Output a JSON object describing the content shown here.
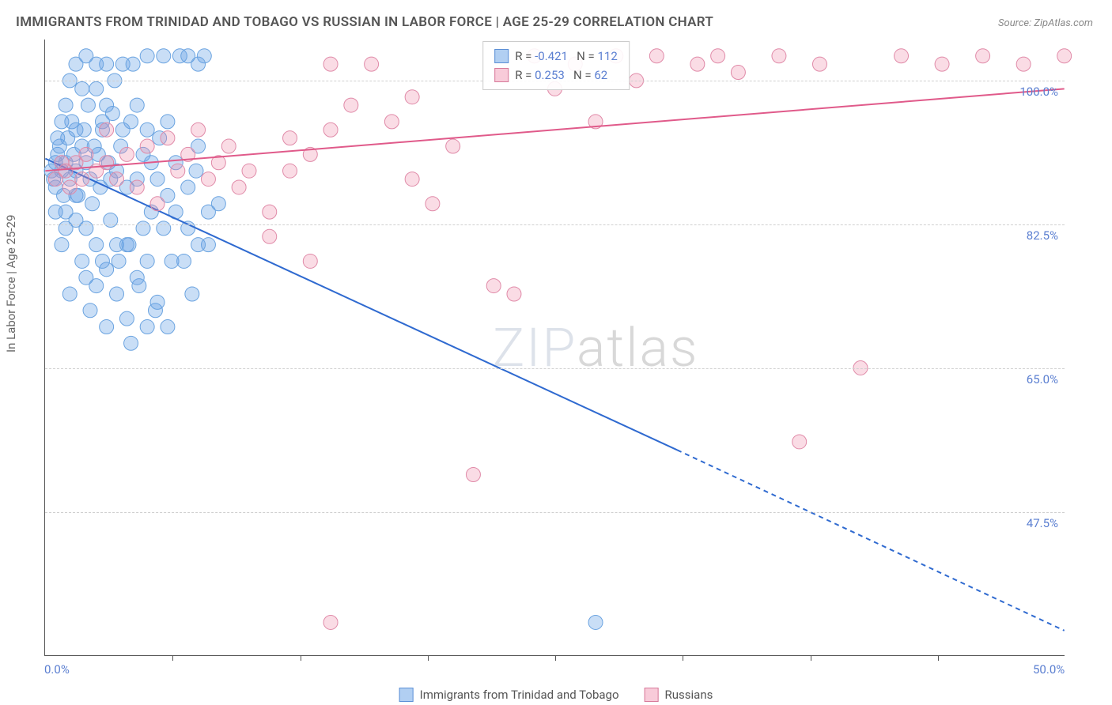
{
  "title": "IMMIGRANTS FROM TRINIDAD AND TOBAGO VS RUSSIAN IN LABOR FORCE | AGE 25-29 CORRELATION CHART",
  "source": "Source: ZipAtlas.com",
  "y_axis_title": "In Labor Force | Age 25-29",
  "watermark_a": "ZIP",
  "watermark_b": "atlas",
  "chart": {
    "type": "scatter",
    "xlim": [
      0,
      50
    ],
    "ylim": [
      30,
      105
    ],
    "x_ticks": [
      0,
      50
    ],
    "x_tick_labels": [
      "0.0%",
      "50.0%"
    ],
    "x_minor_ticks": [
      6.25,
      12.5,
      18.75,
      25,
      31.25,
      37.5,
      43.75
    ],
    "y_ticks": [
      47.5,
      65.0,
      82.5,
      100.0
    ],
    "y_tick_labels": [
      "47.5%",
      "65.0%",
      "82.5%",
      "100.0%"
    ],
    "grid_color": "#d0d0d0",
    "background_color": "#ffffff",
    "axis_color": "#555555",
    "series": [
      {
        "name": "Immigrants from Trinidad and Tobago",
        "color_fill": "rgba(100,160,230,0.35)",
        "color_stroke": "#6aa3e0",
        "marker_radius": 9,
        "r": -0.421,
        "n": 112,
        "trend": {
          "x1": 0,
          "y1": 90.5,
          "x2": 31,
          "y2": 55,
          "dash_from_x": 31,
          "dash_to_x": 50,
          "dash_to_y": 33,
          "color": "#2f6ad0",
          "width": 2
        },
        "points": [
          [
            0.3,
            89
          ],
          [
            0.4,
            88
          ],
          [
            0.5,
            90
          ],
          [
            0.6,
            91
          ],
          [
            0.5,
            87
          ],
          [
            0.7,
            92
          ],
          [
            0.8,
            89
          ],
          [
            0.9,
            86
          ],
          [
            1.0,
            90
          ],
          [
            1.1,
            93
          ],
          [
            1.2,
            88
          ],
          [
            1.0,
            84
          ],
          [
            1.3,
            95
          ],
          [
            1.4,
            91
          ],
          [
            1.5,
            89
          ],
          [
            1.6,
            86
          ],
          [
            1.8,
            92
          ],
          [
            1.5,
            83
          ],
          [
            1.9,
            94
          ],
          [
            2.0,
            90
          ],
          [
            2.1,
            97
          ],
          [
            2.2,
            88
          ],
          [
            2.3,
            85
          ],
          [
            2.4,
            92
          ],
          [
            2.5,
            99
          ],
          [
            2.6,
            91
          ],
          [
            2.7,
            87
          ],
          [
            2.8,
            94
          ],
          [
            3.0,
            102
          ],
          [
            3.1,
            90
          ],
          [
            3.2,
            83
          ],
          [
            3.3,
            96
          ],
          [
            3.4,
            100
          ],
          [
            3.5,
            89
          ],
          [
            3.6,
            78
          ],
          [
            3.7,
            92
          ],
          [
            3.8,
            102
          ],
          [
            4.0,
            87
          ],
          [
            4.1,
            80
          ],
          [
            4.2,
            95
          ],
          [
            4.3,
            102
          ],
          [
            4.5,
            88
          ],
          [
            4.6,
            75
          ],
          [
            4.8,
            91
          ],
          [
            5.0,
            103
          ],
          [
            5.2,
            84
          ],
          [
            5.4,
            72
          ],
          [
            5.6,
            93
          ],
          [
            5.8,
            103
          ],
          [
            6.0,
            86
          ],
          [
            6.2,
            78
          ],
          [
            6.4,
            90
          ],
          [
            6.6,
            103
          ],
          [
            7.0,
            82
          ],
          [
            7.2,
            74
          ],
          [
            7.4,
            89
          ],
          [
            7.8,
            103
          ],
          [
            8.0,
            80
          ],
          [
            3.0,
            70
          ],
          [
            3.5,
            74
          ],
          [
            4.0,
            71
          ],
          [
            4.5,
            76
          ],
          [
            2.0,
            76
          ],
          [
            2.5,
            80
          ],
          [
            1.8,
            78
          ],
          [
            2.2,
            72
          ],
          [
            5.0,
            78
          ],
          [
            5.5,
            73
          ],
          [
            6.0,
            70
          ],
          [
            4.2,
            68
          ],
          [
            1.5,
            94
          ],
          [
            1.0,
            97
          ],
          [
            0.8,
            95
          ],
          [
            0.6,
            93
          ],
          [
            1.2,
            100
          ],
          [
            1.5,
            102
          ],
          [
            2.0,
            103
          ],
          [
            2.5,
            102
          ],
          [
            3.0,
            97
          ],
          [
            1.8,
            99
          ],
          [
            7.0,
            103
          ],
          [
            7.5,
            102
          ],
          [
            3.5,
            80
          ],
          [
            3.0,
            77
          ],
          [
            2.5,
            75
          ],
          [
            2.0,
            82
          ],
          [
            1.5,
            86
          ],
          [
            1.0,
            82
          ],
          [
            0.5,
            84
          ],
          [
            0.8,
            80
          ],
          [
            3.8,
            94
          ],
          [
            4.5,
            97
          ],
          [
            5.0,
            94
          ],
          [
            5.5,
            88
          ],
          [
            6.0,
            95
          ],
          [
            1.2,
            74
          ],
          [
            4.0,
            80
          ],
          [
            2.8,
            78
          ],
          [
            2.8,
            95
          ],
          [
            3.2,
            88
          ],
          [
            4.8,
            82
          ],
          [
            5.2,
            90
          ],
          [
            5.8,
            82
          ],
          [
            6.4,
            84
          ],
          [
            7.0,
            87
          ],
          [
            7.5,
            80
          ],
          [
            8.0,
            84
          ],
          [
            6.8,
            78
          ],
          [
            5.0,
            70
          ],
          [
            8.5,
            85
          ],
          [
            7.5,
            92
          ],
          [
            27,
            34
          ]
        ]
      },
      {
        "name": "Russians",
        "color_fill": "rgba(240,140,170,0.3)",
        "color_stroke": "#e08aa8",
        "marker_radius": 9,
        "r": 0.253,
        "n": 62,
        "trend": {
          "x1": 0,
          "y1": 89,
          "x2": 50,
          "y2": 99,
          "color": "#e05a8a",
          "width": 2
        },
        "points": [
          [
            0.5,
            88
          ],
          [
            0.8,
            90
          ],
          [
            1.0,
            89
          ],
          [
            1.2,
            87
          ],
          [
            1.5,
            90
          ],
          [
            1.8,
            88
          ],
          [
            2.0,
            91
          ],
          [
            2.5,
            89
          ],
          [
            3.0,
            90
          ],
          [
            3.5,
            88
          ],
          [
            4.0,
            91
          ],
          [
            4.5,
            87
          ],
          [
            5.0,
            92
          ],
          [
            5.5,
            85
          ],
          [
            6.0,
            93
          ],
          [
            6.5,
            89
          ],
          [
            7.0,
            91
          ],
          [
            7.5,
            94
          ],
          [
            8.0,
            88
          ],
          [
            8.5,
            90
          ],
          [
            9.0,
            92
          ],
          [
            9.5,
            87
          ],
          [
            10,
            89
          ],
          [
            11,
            84
          ],
          [
            12,
            93
          ],
          [
            13,
            91
          ],
          [
            14,
            102
          ],
          [
            15,
            97
          ],
          [
            16,
            102
          ],
          [
            17,
            95
          ],
          [
            18,
            98
          ],
          [
            18,
            88
          ],
          [
            19,
            85
          ],
          [
            20,
            92
          ],
          [
            21,
            52
          ],
          [
            22,
            75
          ],
          [
            23,
            74
          ],
          [
            24,
            103
          ],
          [
            25,
            99
          ],
          [
            26,
            102
          ],
          [
            27,
            95
          ],
          [
            28,
            103
          ],
          [
            29,
            100
          ],
          [
            30,
            103
          ],
          [
            32,
            102
          ],
          [
            33,
            103
          ],
          [
            34,
            101
          ],
          [
            36,
            103
          ],
          [
            38,
            102
          ],
          [
            40,
            65
          ],
          [
            37,
            56
          ],
          [
            42,
            103
          ],
          [
            44,
            102
          ],
          [
            46,
            103
          ],
          [
            48,
            102
          ],
          [
            50,
            103
          ],
          [
            11,
            81
          ],
          [
            13,
            78
          ],
          [
            3.0,
            94
          ],
          [
            12,
            89
          ],
          [
            14,
            94
          ],
          [
            14,
            34
          ]
        ]
      }
    ]
  },
  "legend_lines": [
    {
      "swatch": "blue",
      "r_label": "R =",
      "r_val": "-0.421",
      "n_label": "N =",
      "n_val": "112"
    },
    {
      "swatch": "pink",
      "r_label": "R =",
      "r_val": "0.253",
      "n_label": "N =",
      "n_val": "62"
    }
  ],
  "bottom_legend": [
    {
      "swatch": "blue",
      "label": "Immigrants from Trinidad and Tobago"
    },
    {
      "swatch": "pink",
      "label": "Russians"
    }
  ]
}
